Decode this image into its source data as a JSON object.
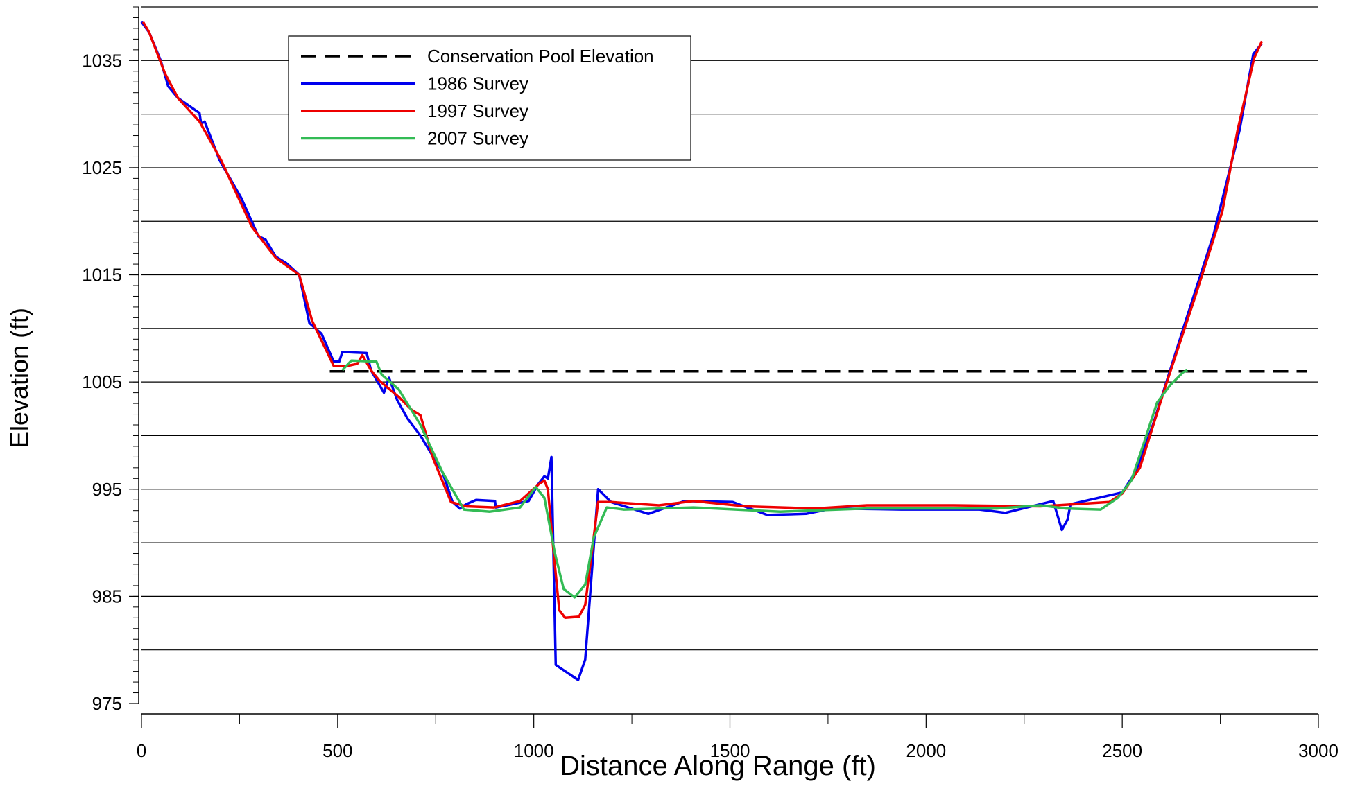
{
  "chart_data": {
    "type": "line",
    "xlabel": "Distance Along Range (ft)",
    "ylabel": "Elevation (ft)",
    "xlim": [
      0,
      3000
    ],
    "xticks": [
      0,
      500,
      1000,
      1500,
      2000,
      2500,
      3000
    ],
    "ylim": [
      975,
      1040
    ],
    "yticks": [
      975,
      985,
      995,
      1005,
      1015,
      1025,
      1035
    ],
    "grid": true,
    "legend": "upper left",
    "series": [
      {
        "name": "Conservation Pool Elevation",
        "color": "#000000",
        "dashed": true,
        "x": [
          480,
          2970
        ],
        "values": [
          1006,
          1006
        ]
      },
      {
        "name": "1986 Survey",
        "color": "#0000ee",
        "x": [
          0,
          20,
          49,
          68,
          93,
          148,
          152,
          161,
          199,
          254,
          298,
          316,
          342,
          369,
          402,
          428,
          459,
          490,
          504,
          512,
          574,
          585,
          618,
          631,
          652,
          678,
          711,
          767,
          793,
          811,
          828,
          853,
          901,
          903,
          987,
          1010,
          1027,
          1036,
          1045,
          1056,
          1113,
          1131,
          1164,
          1197,
          1292,
          1385,
          1507,
          1595,
          1694,
          1761,
          1937,
          2136,
          2202,
          2324,
          2346,
          2361,
          2368,
          2500,
          2534,
          2578,
          2666,
          2733,
          2799,
          2834,
          2856
        ],
        "values": [
          1038.6,
          1037.6,
          1035,
          1032.6,
          1031.5,
          1030.1,
          1029.1,
          1029.3,
          1025.7,
          1022.2,
          1018.6,
          1018.3,
          1016.7,
          1016.1,
          1015,
          1010.5,
          1009.5,
          1006.9,
          1006.9,
          1007.8,
          1007.7,
          1006.1,
          1004,
          1005.4,
          1003.3,
          1001.6,
          1000,
          996.6,
          993.8,
          993.2,
          993.6,
          994,
          993.9,
          993.3,
          993.9,
          995.4,
          996.2,
          996,
          998,
          978.6,
          977.2,
          979.1,
          995,
          993.8,
          992.7,
          993.9,
          993.8,
          992.6,
          992.7,
          993.2,
          993.1,
          993.1,
          992.8,
          993.9,
          991.2,
          992.2,
          993.6,
          994.7,
          996.6,
          1001,
          1011.2,
          1018.8,
          1028.5,
          1035.6,
          1036.6
        ]
      },
      {
        "name": "1997 Survey",
        "color": "#ee0000",
        "x": [
          4,
          20,
          60,
          93,
          148,
          203,
          281,
          342,
          402,
          435,
          490,
          524,
          550,
          563,
          585,
          607,
          656,
          689,
          711,
          744,
          789,
          828,
          899,
          965,
          1014,
          1027,
          1036,
          1049,
          1065,
          1080,
          1115,
          1131,
          1164,
          1197,
          1319,
          1407,
          1540,
          1716,
          1849,
          2070,
          2291,
          2467,
          2500,
          2545,
          2611,
          2688,
          2755,
          2794,
          2836,
          2856
        ],
        "values": [
          1038.6,
          1037.6,
          1033.8,
          1031.5,
          1029.3,
          1025.7,
          1019.5,
          1016.6,
          1015,
          1010.7,
          1006.5,
          1006.5,
          1006.7,
          1007.5,
          1006.1,
          1005.1,
          1003.6,
          1002.4,
          1001.9,
          997.8,
          993.8,
          993.4,
          993.3,
          993.9,
          995.5,
          995.8,
          995,
          989.7,
          983.7,
          983,
          983.1,
          984.2,
          993.8,
          993.8,
          993.5,
          993.9,
          993.4,
          993.2,
          993.5,
          993.5,
          993.4,
          993.8,
          994.6,
          997,
          1004.7,
          1013.2,
          1020.9,
          1028.5,
          1035.2,
          1036.8
        ]
      },
      {
        "name": "2007 Survey",
        "color": "#33bb55",
        "x": [
          512,
          535,
          599,
          612,
          656,
          711,
          767,
          822,
          888,
          965,
          1005,
          1027,
          1054,
          1076,
          1104,
          1131,
          1153,
          1186,
          1230,
          1407,
          1628,
          1849,
          2180,
          2291,
          2357,
          2445,
          2489,
          2523,
          2556,
          2589,
          2622,
          2655,
          2666
        ],
        "values": [
          1006.1,
          1007,
          1006.9,
          1005.7,
          1004.3,
          1001,
          996.6,
          993.1,
          992.9,
          993.3,
          995.2,
          994.2,
          989,
          985.7,
          984.9,
          986.1,
          990.5,
          993.3,
          993.1,
          993.3,
          992.9,
          993.2,
          993.2,
          993.5,
          993.2,
          993.1,
          994.2,
          995.8,
          999.4,
          1003.1,
          1004.7,
          1005.9,
          1006.1
        ]
      }
    ]
  }
}
